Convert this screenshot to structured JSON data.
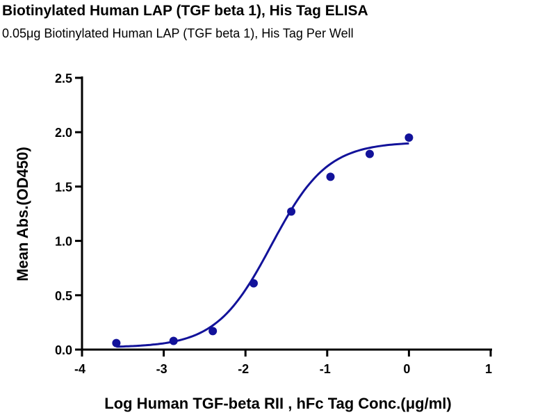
{
  "chart_data": {
    "type": "scatter",
    "title": "Biotinylated Human LAP (TGF beta 1), His Tag ELISA",
    "subtitle": "0.05μg Biotinylated Human LAP (TGF beta 1), His Tag Per Well",
    "xlabel": "Log Human TGF-beta RII , hFc Tag Conc.(μg/ml)",
    "ylabel": "Mean Abs.(OD450)",
    "xlim": [
      -4,
      1
    ],
    "ylim": [
      0,
      2.5
    ],
    "xticks": [
      "-4",
      "-3",
      "-2",
      "-1",
      "0",
      "1"
    ],
    "yticks": [
      "0.0",
      "0.5",
      "1.0",
      "1.5",
      "2.0",
      "2.5"
    ],
    "grid": false,
    "fit": "four-parameter logistic curve",
    "color": "#12129a",
    "series": [
      {
        "x": [
          -3.58,
          -2.88,
          -2.4,
          -1.9,
          -1.44,
          -0.96,
          -0.48,
          0.0
        ],
        "y": [
          0.06,
          0.08,
          0.17,
          0.61,
          1.27,
          1.59,
          1.8,
          1.95
        ]
      }
    ]
  }
}
